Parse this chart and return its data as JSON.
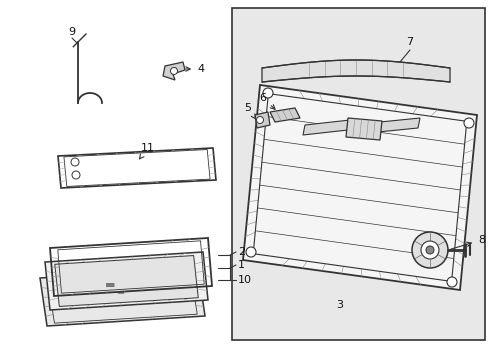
{
  "background_color": "#ffffff",
  "box_fill_color": "#e8e8e8",
  "line_color": "#333333",
  "text_color": "#111111",
  "hatch_color": "#999999",
  "fig_w": 4.89,
  "fig_h": 3.6,
  "dpi": 100
}
